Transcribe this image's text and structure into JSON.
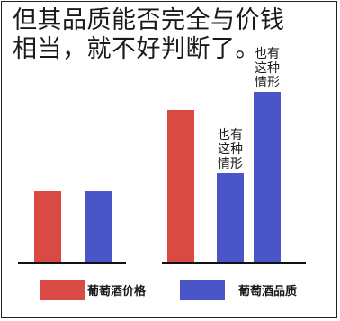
{
  "chart_data": {
    "type": "bar",
    "title_lines": [
      "但其品质能否完全与价钱",
      "相当，就不好判断了。"
    ],
    "groups": [
      {
        "bars": [
          {
            "series": "葡萄酒价格",
            "value": 4.0,
            "annotation": []
          },
          {
            "series": "葡萄酒品质",
            "value": 4.0,
            "annotation": []
          }
        ]
      },
      {
        "bars": [
          {
            "series": "葡萄酒价格",
            "value": 8.5,
            "annotation": []
          },
          {
            "series": "葡萄酒品质",
            "value": 5.0,
            "annotation": [
              "也有",
              "这种",
              "情形"
            ]
          },
          {
            "series": "葡萄酒品质",
            "value": 9.5,
            "annotation": [
              "也有",
              "这种",
              "情形"
            ]
          }
        ]
      }
    ],
    "series": [
      {
        "name": "葡萄酒价格",
        "color": "#d94a45"
      },
      {
        "name": "葡萄酒品质",
        "color": "#4a56c8"
      }
    ],
    "ylim": [
      0,
      10
    ],
    "axis": "baseline-only",
    "legend_position": "bottom"
  }
}
